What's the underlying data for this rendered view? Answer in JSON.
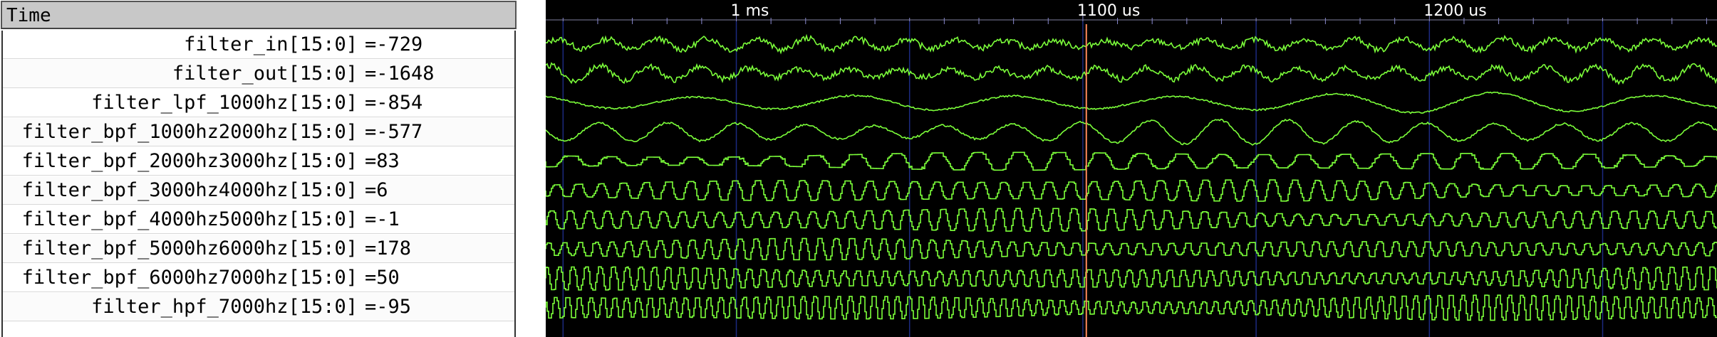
{
  "signal_panel": {
    "header": "Time",
    "signals": [
      {
        "name": "filter_in[15:0]",
        "value": "=-729"
      },
      {
        "name": "filter_out[15:0]",
        "value": "=-1648"
      },
      {
        "name": "filter_lpf_1000hz[15:0]",
        "value": "=-854"
      },
      {
        "name": "filter_bpf_1000hz2000hz[15:0]",
        "value": "=-577"
      },
      {
        "name": "filter_bpf_2000hz3000hz[15:0]",
        "value": "=83"
      },
      {
        "name": "filter_bpf_3000hz4000hz[15:0]",
        "value": "=6"
      },
      {
        "name": "filter_bpf_4000hz5000hz[15:0]",
        "value": "=-1"
      },
      {
        "name": "filter_bpf_5000hz6000hz[15:0]",
        "value": "=178"
      },
      {
        "name": "filter_bpf_6000hz7000hz[15:0]",
        "value": "=50"
      },
      {
        "name": "filter_hpf_7000hz[15:0]",
        "value": "=-95"
      }
    ]
  },
  "timeline": {
    "ticks": [
      {
        "label": "1 ms",
        "time_us": 1000
      },
      {
        "label": "1100 us",
        "time_us": 1100
      },
      {
        "label": "1200 us",
        "time_us": 1200
      }
    ],
    "visible_range_us": [
      945,
      1283
    ],
    "cursor_time_us": 1101
  },
  "colors": {
    "wave": "#7cff3a",
    "background": "#000000",
    "grid": "#1c2a80",
    "cursor": "#ff8a5c",
    "tick_text": "#ffffff"
  }
}
